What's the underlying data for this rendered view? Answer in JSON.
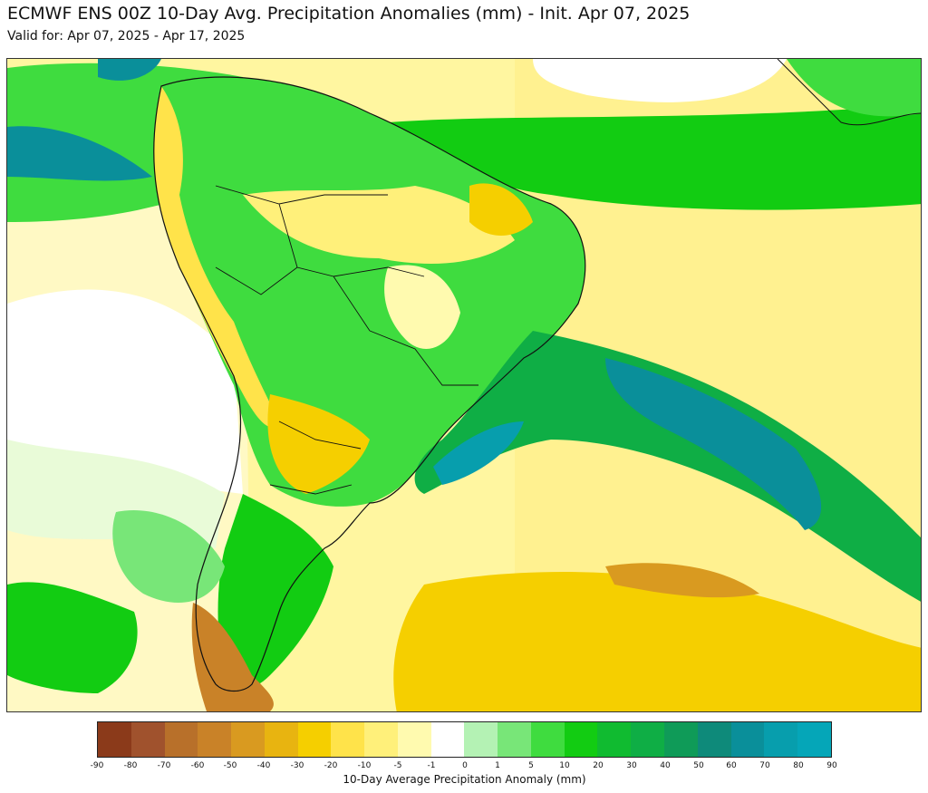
{
  "header": {
    "title": "ECMWF ENS 00Z 10-Day Avg. Precipitation Anomalies (mm) - Init. Apr 07, 2025",
    "subtitle": "Valid for: Apr 07, 2025 - Apr 17, 2025"
  },
  "colorbar": {
    "label": "10-Day Average Precipitation Anomaly (mm)",
    "ticks": [
      "-90",
      "-80",
      "-70",
      "-60",
      "-50",
      "-40",
      "-30",
      "-20",
      "-10",
      "-5",
      "-1",
      "0",
      "1",
      "5",
      "10",
      "20",
      "30",
      "40",
      "50",
      "60",
      "70",
      "80",
      "90"
    ],
    "colors": [
      "#8b3a1a",
      "#a0522d",
      "#b8702a",
      "#c98228",
      "#d99a20",
      "#e8b410",
      "#f5cf00",
      "#ffe34a",
      "#fff07a",
      "#fffaaf",
      "#ffffff",
      "#ffffff",
      "#b4f2b4",
      "#78e678",
      "#3fdc3f",
      "#12cc12",
      "#10bb30",
      "#0fae45",
      "#0f9b58",
      "#0e8a7a",
      "#0a8f9a",
      "#079ead",
      "#05a6b8"
    ]
  }
}
